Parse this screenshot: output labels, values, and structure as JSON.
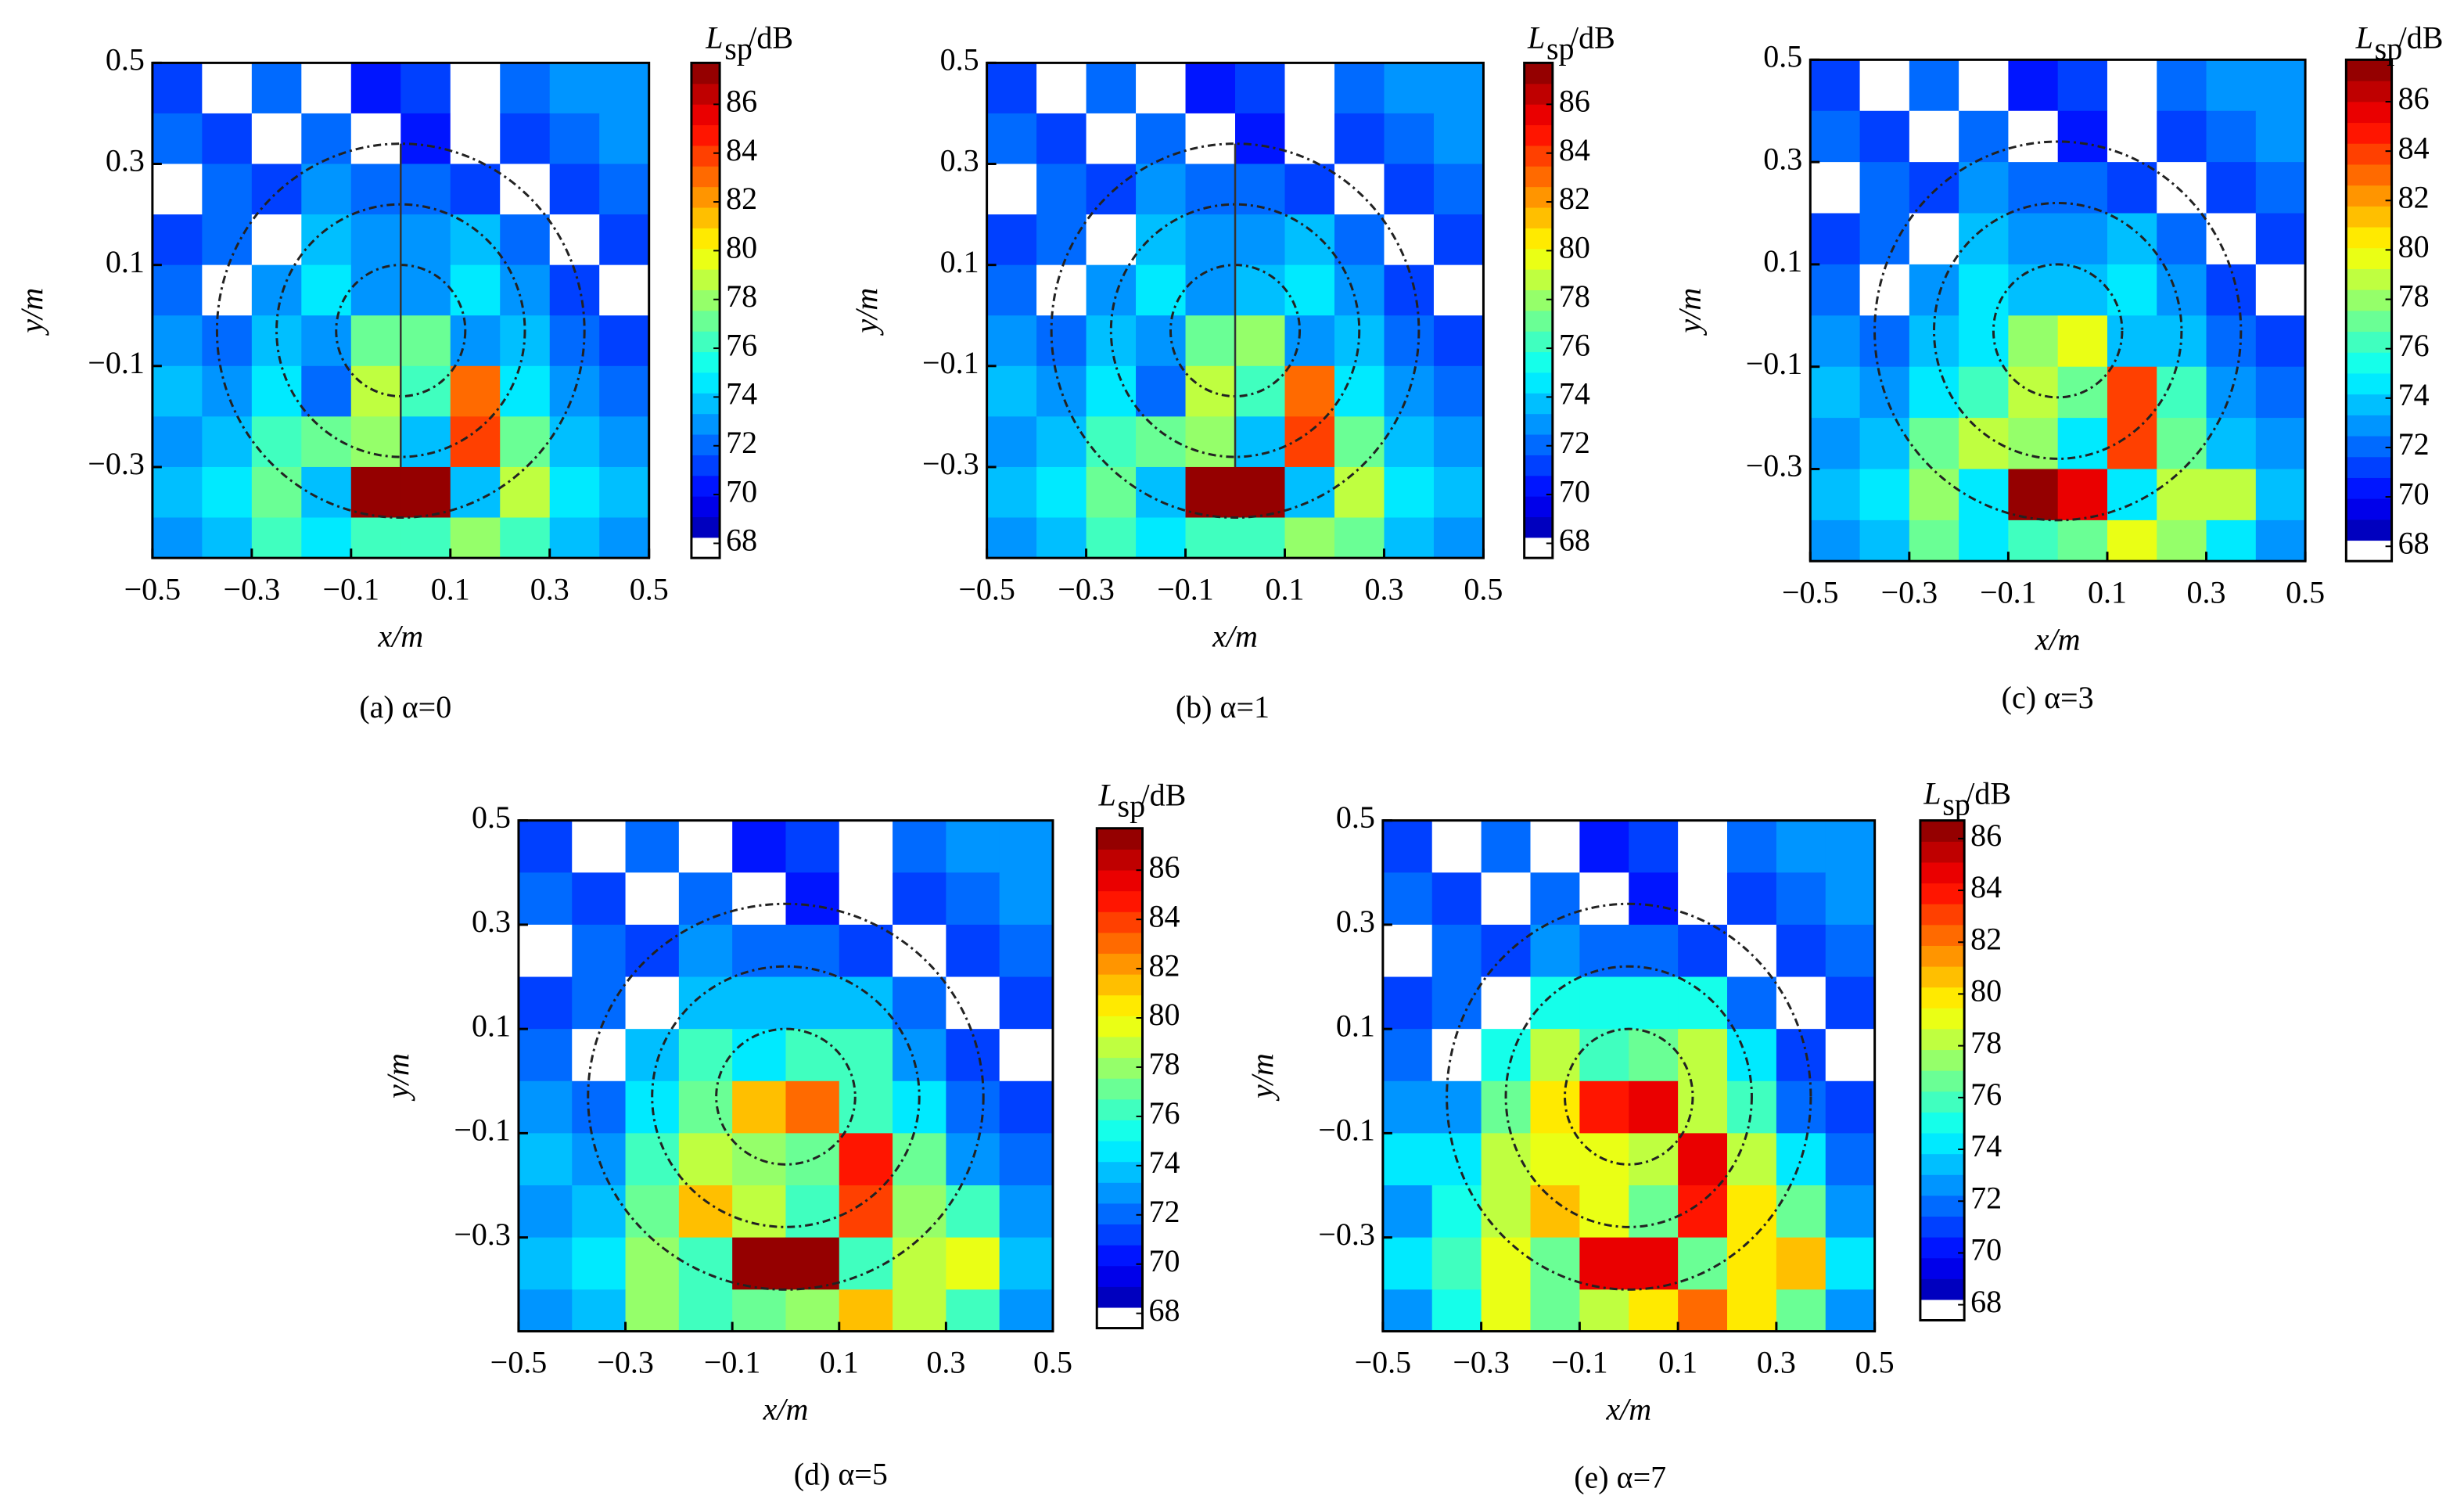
{
  "chart_data": [
    {
      "type": "heatmap",
      "caption": "(a) α=0",
      "xlabel": "x/m",
      "ylabel": "y/m",
      "colorbar_label": {
        "symbol": "L",
        "subscript": "sp",
        "unit": "/dB"
      },
      "x": [
        -0.45,
        -0.35,
        -0.25,
        -0.15,
        -0.05,
        0.05,
        0.15,
        0.25,
        0.35,
        0.45
      ],
      "y": [
        0.45,
        0.35,
        0.25,
        0.15,
        0.05,
        -0.05,
        -0.15,
        -0.25,
        -0.35,
        -0.45
      ],
      "values": [
        [
          71,
          67,
          72,
          67,
          70,
          71,
          67,
          72,
          73,
          73
        ],
        [
          72,
          71,
          67,
          72,
          67,
          70,
          67,
          71,
          72,
          73
        ],
        [
          67,
          72,
          71,
          73,
          72,
          72,
          71,
          67,
          71,
          72
        ],
        [
          71,
          72,
          67,
          74,
          73,
          73,
          74,
          72,
          67,
          71
        ],
        [
          72,
          67,
          73,
          75,
          73,
          73,
          75,
          73,
          71,
          67
        ],
        [
          73,
          72,
          74,
          73,
          77,
          77,
          73,
          74,
          72,
          71
        ],
        [
          74,
          73,
          75,
          72,
          79,
          76,
          83,
          75,
          73,
          72
        ],
        [
          73,
          74,
          76,
          77,
          78,
          74,
          84,
          77,
          74,
          73
        ],
        [
          74,
          75,
          77,
          74,
          87,
          87,
          74,
          79,
          75,
          74
        ],
        [
          73,
          74,
          76,
          75,
          76,
          76,
          78,
          76,
          74,
          73
        ]
      ],
      "xlim": [
        -0.5,
        0.5
      ],
      "ylim": [
        -0.48,
        0.5
      ],
      "xticks": [
        {
          "value": -0.5,
          "label": "−0.5"
        },
        {
          "value": -0.3,
          "label": "−0.3"
        },
        {
          "value": -0.1,
          "label": "−0.1"
        },
        0.1,
        0.3,
        0.5
      ],
      "yticks": [
        0.5,
        0.3,
        0.1,
        {
          "value": -0.1,
          "label": "−0.1"
        },
        {
          "value": -0.3,
          "label": "−0.3"
        }
      ],
      "clim": [
        67.4,
        87.7
      ],
      "cticks": [
        68,
        70,
        72,
        74,
        76,
        78,
        80,
        82,
        84,
        86
      ],
      "colormap": "jet",
      "levels": 24,
      "lowest_level_color": "#ffffff"
    },
    {
      "type": "heatmap",
      "caption": "(b) α=1",
      "xlabel": "x/m",
      "ylabel": "y/m",
      "colorbar_label": {
        "symbol": "L",
        "subscript": "sp",
        "unit": "/dB"
      },
      "x": [
        -0.45,
        -0.35,
        -0.25,
        -0.15,
        -0.05,
        0.05,
        0.15,
        0.25,
        0.35,
        0.45
      ],
      "y": [
        0.45,
        0.35,
        0.25,
        0.15,
        0.05,
        -0.05,
        -0.15,
        -0.25,
        -0.35,
        -0.45
      ],
      "values": [
        [
          71,
          67,
          72,
          67,
          70,
          71,
          67,
          72,
          73,
          73
        ],
        [
          72,
          71,
          67,
          72,
          67,
          70,
          67,
          71,
          72,
          73
        ],
        [
          67,
          72,
          71,
          73,
          72,
          72,
          71,
          67,
          71,
          72
        ],
        [
          71,
          72,
          67,
          74,
          73,
          73,
          74,
          72,
          67,
          71
        ],
        [
          72,
          67,
          73,
          75,
          73,
          74,
          75,
          73,
          71,
          67
        ],
        [
          73,
          72,
          74,
          73,
          77,
          78,
          73,
          74,
          72,
          71
        ],
        [
          74,
          73,
          75,
          72,
          79,
          76,
          83,
          75,
          73,
          72
        ],
        [
          73,
          74,
          76,
          77,
          78,
          74,
          84,
          77,
          74,
          73
        ],
        [
          74,
          75,
          77,
          74,
          87,
          87,
          74,
          79,
          75,
          74
        ],
        [
          73,
          74,
          76,
          75,
          76,
          76,
          78,
          77,
          74,
          73
        ]
      ],
      "xlim": [
        -0.5,
        0.5
      ],
      "ylim": [
        -0.48,
        0.5
      ],
      "xticks": [
        {
          "value": -0.5,
          "label": "−0.5"
        },
        {
          "value": -0.3,
          "label": "−0.3"
        },
        {
          "value": -0.1,
          "label": "−0.1"
        },
        0.1,
        0.3,
        0.5
      ],
      "yticks": [
        0.5,
        0.3,
        0.1,
        {
          "value": -0.1,
          "label": "−0.1"
        },
        {
          "value": -0.3,
          "label": "−0.3"
        }
      ],
      "clim": [
        67.4,
        87.7
      ],
      "cticks": [
        68,
        70,
        72,
        74,
        76,
        78,
        80,
        82,
        84,
        86
      ],
      "colormap": "jet",
      "levels": 24,
      "lowest_level_color": "#ffffff"
    },
    {
      "type": "heatmap",
      "caption": "(c) α=3",
      "xlabel": "x/m",
      "ylabel": "y/m",
      "colorbar_label": {
        "symbol": "L",
        "subscript": "sp",
        "unit": "/dB"
      },
      "x": [
        -0.45,
        -0.35,
        -0.25,
        -0.15,
        -0.05,
        0.05,
        0.15,
        0.25,
        0.35,
        0.45
      ],
      "y": [
        0.45,
        0.35,
        0.25,
        0.15,
        0.05,
        -0.05,
        -0.15,
        -0.25,
        -0.35,
        -0.45
      ],
      "values": [
        [
          71,
          67,
          72,
          67,
          70,
          71,
          67,
          72,
          73,
          73
        ],
        [
          72,
          71,
          67,
          72,
          67,
          70,
          67,
          71,
          72,
          73
        ],
        [
          67,
          72,
          71,
          73,
          72,
          72,
          71,
          67,
          71,
          72
        ],
        [
          71,
          72,
          67,
          74,
          73,
          73,
          74,
          72,
          67,
          71
        ],
        [
          72,
          67,
          73,
          75,
          74,
          74,
          75,
          73,
          71,
          67
        ],
        [
          73,
          72,
          74,
          75,
          78,
          80,
          74,
          74,
          72,
          71
        ],
        [
          74,
          73,
          75,
          76,
          79,
          77,
          84,
          76,
          73,
          72
        ],
        [
          73,
          74,
          77,
          79,
          78,
          75,
          84,
          77,
          74,
          73
        ],
        [
          74,
          75,
          78,
          75,
          87,
          86,
          75,
          79,
          79,
          74
        ],
        [
          73,
          74,
          77,
          75,
          76,
          77,
          80,
          78,
          75,
          73
        ]
      ],
      "xlim": [
        -0.5,
        0.5
      ],
      "ylim": [
        -0.48,
        0.5
      ],
      "xticks": [
        {
          "value": -0.5,
          "label": "−0.5"
        },
        {
          "value": -0.3,
          "label": "−0.3"
        },
        {
          "value": -0.1,
          "label": "−0.1"
        },
        0.1,
        0.3,
        0.5
      ],
      "yticks": [
        0.5,
        0.3,
        0.1,
        {
          "value": -0.1,
          "label": "−0.1"
        },
        {
          "value": -0.3,
          "label": "−0.3"
        }
      ],
      "clim": [
        67.4,
        87.7
      ],
      "cticks": [
        68,
        70,
        72,
        74,
        76,
        78,
        80,
        82,
        84,
        86
      ],
      "colormap": "jet",
      "levels": 24,
      "lowest_level_color": "#ffffff"
    },
    {
      "type": "heatmap",
      "caption": "(d) α=5",
      "xlabel": "x/m",
      "ylabel": "y/m",
      "colorbar_label": {
        "symbol": "L",
        "subscript": "sp",
        "unit": "/dB"
      },
      "x": [
        -0.45,
        -0.35,
        -0.25,
        -0.15,
        -0.05,
        0.05,
        0.15,
        0.25,
        0.35,
        0.45
      ],
      "y": [
        0.45,
        0.35,
        0.25,
        0.15,
        0.05,
        -0.05,
        -0.15,
        -0.25,
        -0.35,
        -0.45
      ],
      "values": [
        [
          71,
          67,
          72,
          67,
          70,
          71,
          67,
          72,
          73,
          73
        ],
        [
          72,
          71,
          67,
          72,
          67,
          70,
          67,
          71,
          72,
          73
        ],
        [
          67,
          72,
          71,
          73,
          72,
          72,
          71,
          67,
          71,
          72
        ],
        [
          71,
          72,
          67,
          74,
          74,
          74,
          74,
          72,
          67,
          71
        ],
        [
          72,
          67,
          74,
          76,
          75,
          76,
          76,
          73,
          71,
          67
        ],
        [
          73,
          72,
          75,
          77,
          81,
          83,
          76,
          75,
          72,
          71
        ],
        [
          74,
          73,
          76,
          79,
          78,
          77,
          85,
          77,
          73,
          72
        ],
        [
          73,
          74,
          77,
          81,
          79,
          76,
          84,
          78,
          76,
          73
        ],
        [
          74,
          75,
          78,
          76,
          87,
          87,
          76,
          79,
          80,
          74
        ],
        [
          73,
          74,
          78,
          76,
          77,
          78,
          81,
          79,
          76,
          73
        ]
      ],
      "xlim": [
        -0.5,
        0.5
      ],
      "ylim": [
        -0.48,
        0.5
      ],
      "xticks": [
        {
          "value": -0.5,
          "label": "−0.5"
        },
        {
          "value": -0.3,
          "label": "−0.3"
        },
        {
          "value": -0.1,
          "label": "−0.1"
        },
        0.1,
        0.3,
        0.5
      ],
      "yticks": [
        0.5,
        0.3,
        0.1,
        {
          "value": -0.1,
          "label": "−0.1"
        },
        {
          "value": -0.3,
          "label": "−0.3"
        }
      ],
      "clim": [
        67.4,
        87.7
      ],
      "cticks": [
        68,
        70,
        72,
        74,
        76,
        78,
        80,
        82,
        84,
        86
      ],
      "colormap": "jet",
      "levels": 24,
      "lowest_level_color": "#ffffff"
    },
    {
      "type": "heatmap",
      "caption": "(e) α=7",
      "xlabel": "x/m",
      "ylabel": "y/m",
      "colorbar_label": {
        "symbol": "L",
        "subscript": "sp",
        "unit": "/dB"
      },
      "x": [
        -0.45,
        -0.35,
        -0.25,
        -0.15,
        -0.05,
        0.05,
        0.15,
        0.25,
        0.35,
        0.45
      ],
      "y": [
        0.45,
        0.35,
        0.25,
        0.15,
        0.05,
        -0.05,
        -0.15,
        -0.25,
        -0.35,
        -0.45
      ],
      "values": [
        [
          71,
          67,
          72,
          67,
          70,
          71,
          67,
          72,
          73,
          73
        ],
        [
          72,
          71,
          67,
          72,
          67,
          70,
          67,
          71,
          72,
          73
        ],
        [
          67,
          72,
          71,
          73,
          72,
          72,
          71,
          67,
          71,
          72
        ],
        [
          71,
          72,
          67,
          75,
          75,
          75,
          75,
          72,
          67,
          71
        ],
        [
          72,
          67,
          75,
          78,
          76,
          77,
          78,
          74,
          71,
          67
        ],
        [
          73,
          73,
          77,
          80,
          84,
          85,
          78,
          76,
          72,
          71
        ],
        [
          74,
          74,
          78,
          79,
          79,
          78,
          85,
          78,
          74,
          72
        ],
        [
          73,
          75,
          78,
          81,
          79,
          77,
          84,
          80,
          77,
          73
        ],
        [
          74,
          76,
          79,
          77,
          85,
          85,
          77,
          80,
          81,
          74
        ],
        [
          73,
          75,
          79,
          77,
          78,
          80,
          82,
          80,
          77,
          73
        ]
      ],
      "xlim": [
        -0.5,
        0.5
      ],
      "ylim": [
        -0.48,
        0.5
      ],
      "xticks": [
        {
          "value": -0.5,
          "label": "−0.5"
        },
        {
          "value": -0.3,
          "label": "−0.3"
        },
        {
          "value": -0.1,
          "label": "−0.1"
        },
        0.1,
        0.3,
        0.5
      ],
      "yticks": [
        0.5,
        0.3,
        0.1,
        {
          "value": -0.1,
          "label": "−0.1"
        },
        {
          "value": -0.3,
          "label": "−0.3"
        }
      ],
      "clim": [
        67.4,
        86.7
      ],
      "cticks": [
        68,
        70,
        72,
        74,
        76,
        78,
        80,
        82,
        84,
        86
      ],
      "colormap": "jet",
      "levels": 24,
      "lowest_level_color": "#ffffff"
    }
  ]
}
